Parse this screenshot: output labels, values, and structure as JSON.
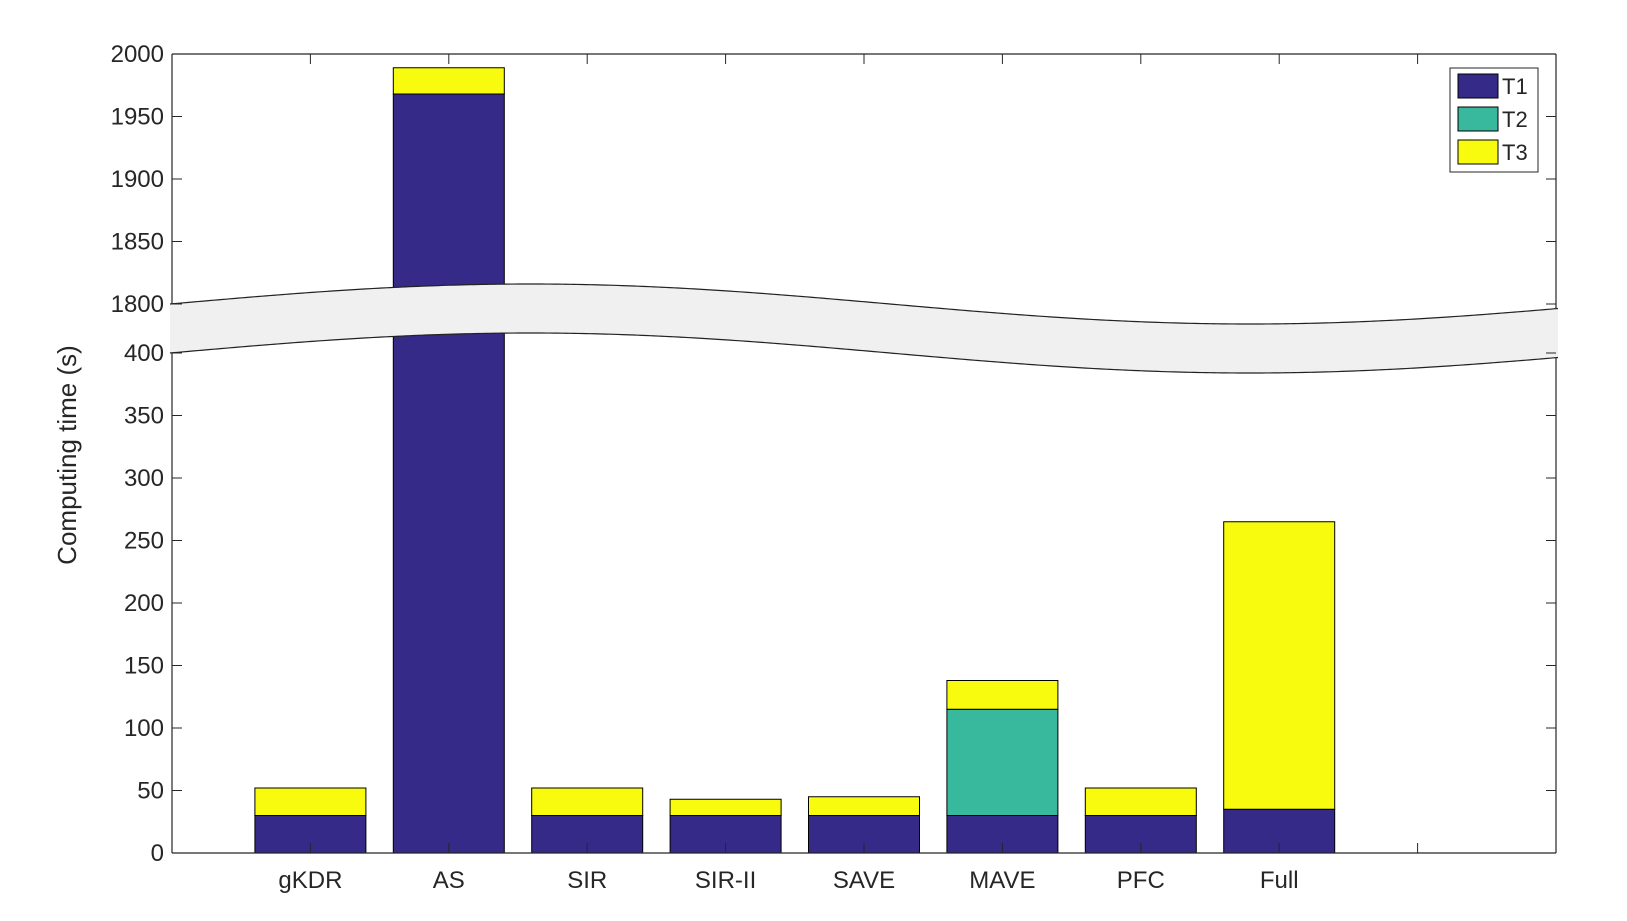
{
  "chart_data": {
    "type": "bar",
    "stacked": true,
    "broken_axis": true,
    "categories": [
      "gKDR",
      "AS",
      "SIR",
      "SIR-II",
      "SAVE",
      "MAVE",
      "PFC",
      "Full"
    ],
    "series": [
      {
        "name": "T1",
        "color": "#352a87",
        "values": [
          30,
          1968,
          30,
          30,
          30,
          30,
          30,
          35
        ]
      },
      {
        "name": "T2",
        "color": "#38b99e",
        "values": [
          0,
          0,
          0,
          0,
          0,
          85,
          0,
          0
        ]
      },
      {
        "name": "T3",
        "color": "#f9fb0e",
        "values": [
          22,
          21,
          22,
          13,
          15,
          23,
          22,
          230
        ]
      }
    ],
    "xlabel": "",
    "ylabel": "Computing time (s)",
    "lower_ylim": [
      0,
      400
    ],
    "upper_ylim": [
      1800,
      2000
    ],
    "lower_yticks": [
      "0",
      "50",
      "100",
      "150",
      "200",
      "250",
      "300",
      "350",
      "400"
    ],
    "upper_yticks": [
      "1800",
      "1850",
      "1900",
      "1950",
      "2000"
    ],
    "legend_placement": "top-right",
    "grid": false
  }
}
